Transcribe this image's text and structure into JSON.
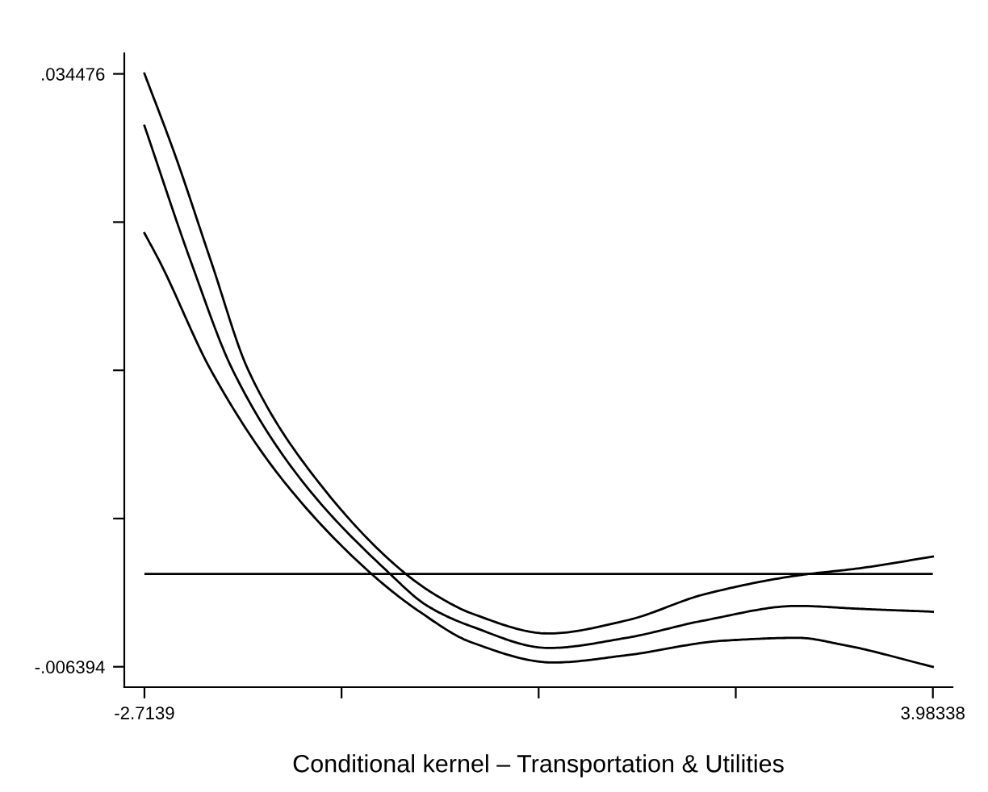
{
  "chart_data": {
    "type": "line",
    "xlabel": "Conditional kernel – Transportation & Utilities",
    "series": [
      {
        "color": "#000000",
        "x": [
          -2.714,
          -2.45,
          -2.146,
          -1.829,
          -1.261,
          -0.508,
          -0.23,
          0.06,
          0.721,
          1.381,
          2.042,
          2.834,
          3.363,
          3.983
        ],
        "values": [
          0.0345,
          0.0288,
          0.0215,
          0.014,
          0.0066,
          0.0001,
          -0.0015,
          -0.0027,
          -0.0041,
          -0.0032,
          -0.0014,
          -0.0001,
          0.0004,
          0.0012
        ]
      },
      {
        "color": "#000000",
        "x": [
          -2.714,
          -2.318,
          -1.961,
          -1.393,
          -0.64,
          -0.31,
          0.06,
          0.721,
          1.381,
          2.042,
          2.834,
          3.363,
          3.983
        ],
        "values": [
          0.0309,
          0.0215,
          0.014,
          0.0066,
          0.0001,
          -0.0022,
          -0.0036,
          -0.0051,
          -0.0044,
          -0.0032,
          -0.0022,
          -0.0024,
          -0.0026
        ]
      },
      {
        "color": "#000000",
        "x": [
          -2.714,
          -2.582,
          -2.146,
          -1.551,
          -0.798,
          -0.376,
          0.06,
          0.76,
          1.381,
          2.2,
          2.834,
          3.23,
          3.983
        ],
        "values": [
          0.0235,
          0.0215,
          0.014,
          0.0066,
          0.0001,
          -0.0026,
          -0.0047,
          -0.0061,
          -0.0056,
          -0.0046,
          -0.0044,
          -0.0049,
          -0.0064
        ]
      }
    ],
    "ref_lines": [
      {
        "axis": "y",
        "value": 0,
        "color": "#000000"
      }
    ],
    "xlim": [
      -2.885,
      4.15
    ],
    "ylim": [
      -0.0078,
      0.0359
    ],
    "xticks": [
      {
        "value": -2.7139,
        "label": "-2.7139"
      },
      {
        "value": -1.0396,
        "label": null
      },
      {
        "value": 0.6347,
        "label": null
      },
      {
        "value": 2.3091,
        "label": null
      },
      {
        "value": 3.98338,
        "label": "3.98338"
      }
    ],
    "yticks": [
      {
        "value": -0.006394,
        "label": "-.006394"
      },
      {
        "value": 0.0038235,
        "label": null
      },
      {
        "value": 0.014041,
        "label": null
      },
      {
        "value": 0.0242585,
        "label": null
      },
      {
        "value": 0.034476,
        "label": ".034476"
      }
    ],
    "grid": false,
    "legend": false,
    "marker": "none",
    "line_style": "solid"
  }
}
